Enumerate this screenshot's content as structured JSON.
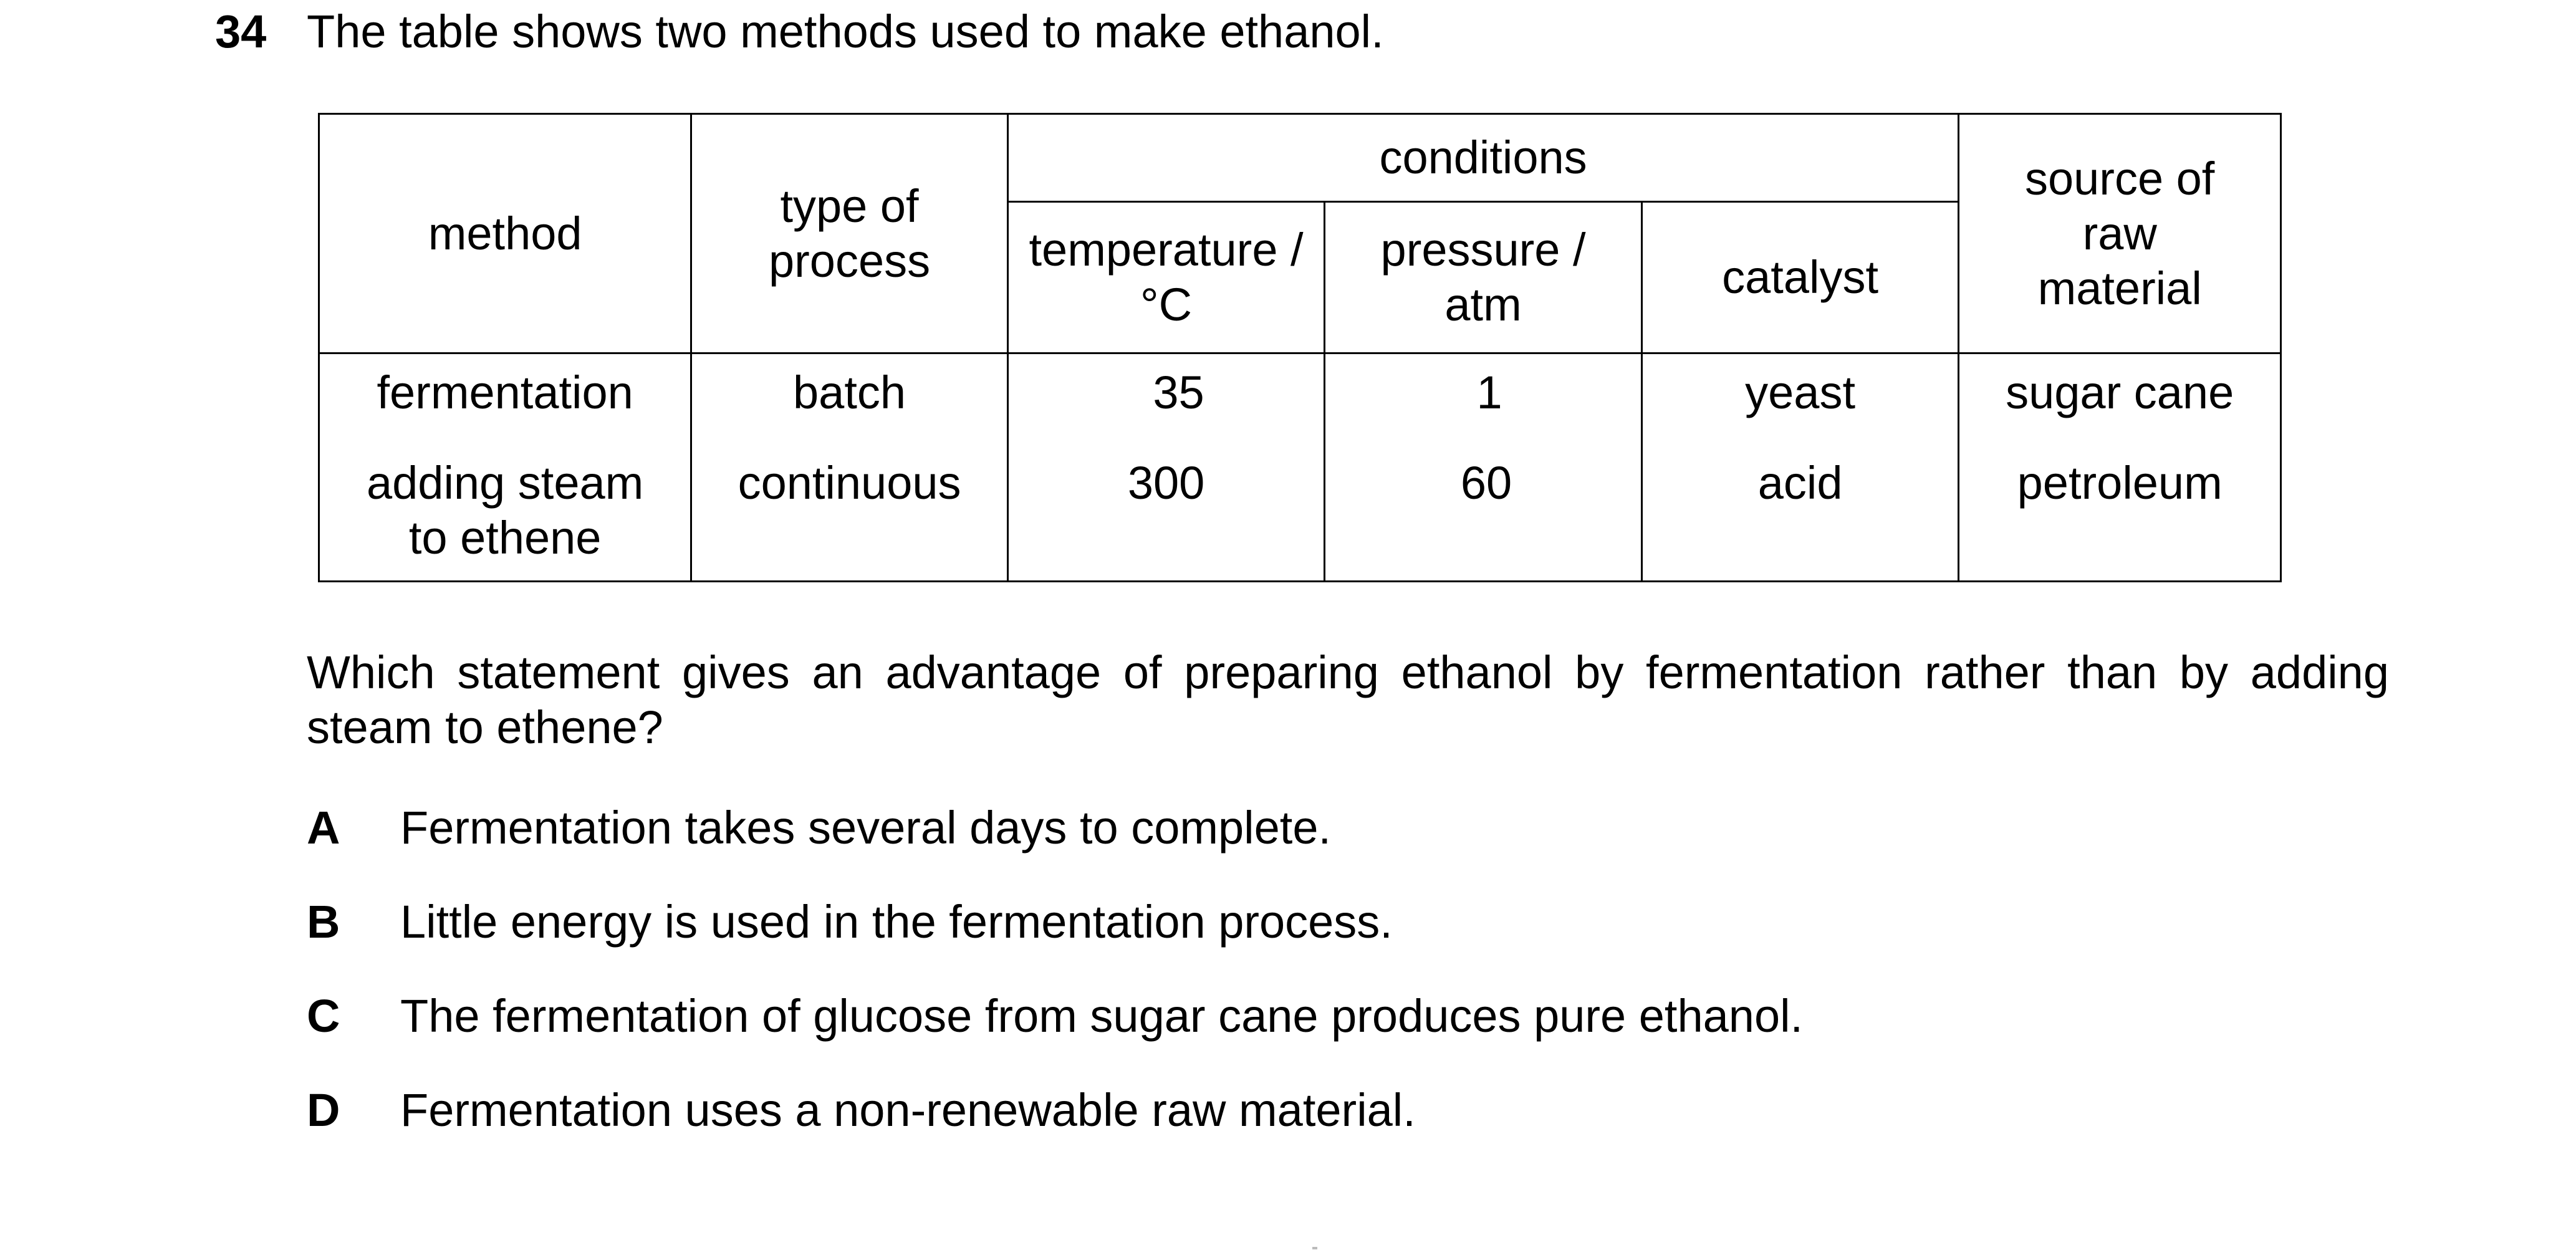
{
  "question": {
    "number": "34",
    "intro": "The table shows two methods used to make ethanol.",
    "stem": "Which statement gives an advantage of preparing ethanol by fermentation rather than by adding steam to ethene?"
  },
  "table": {
    "headers": {
      "method": "method",
      "type_of_process": "type of process",
      "conditions": "conditions",
      "temperature": "temperature / °C",
      "pressure": "pressure / atm",
      "catalyst": "catalyst",
      "source": "source of raw material"
    },
    "rows": [
      {
        "method": "fermentation",
        "type_of_process": "batch",
        "temperature": "35",
        "pressure": "1",
        "catalyst": "yeast",
        "source": "sugar cane"
      },
      {
        "method": "adding steam to ethene",
        "type_of_process": "continuous",
        "temperature": "300",
        "pressure": "60",
        "catalyst": "acid",
        "source": "petroleum"
      }
    ]
  },
  "options": [
    {
      "letter": "A",
      "text": "Fermentation takes several days to complete."
    },
    {
      "letter": "B",
      "text": "Little energy is used in the fermentation process."
    },
    {
      "letter": "C",
      "text": "The fermentation of glucose from sugar cane produces pure ethanol."
    },
    {
      "letter": "D",
      "text": "Fermentation uses a non-renewable raw material."
    }
  ]
}
